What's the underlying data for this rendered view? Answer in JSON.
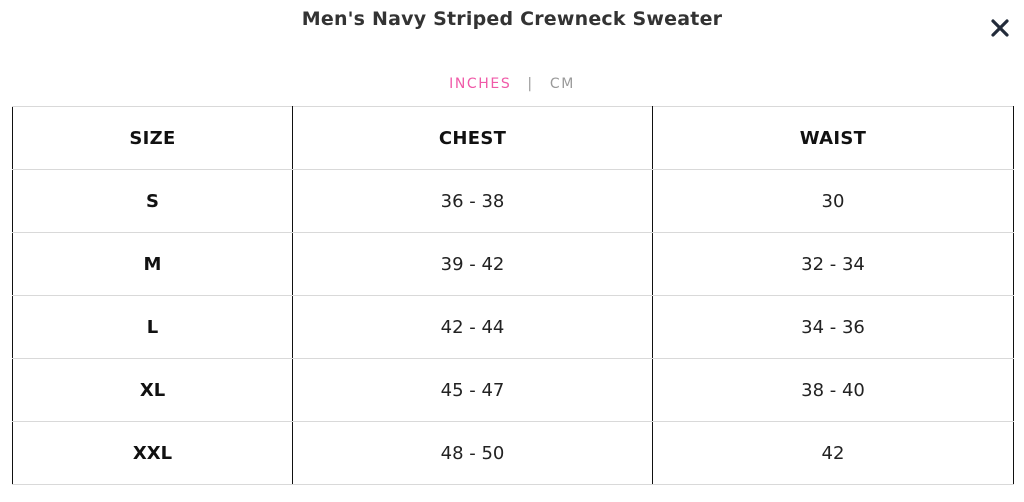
{
  "modal": {
    "title": "Men's Navy Striped Crewneck Sweater",
    "close_icon": "close-icon"
  },
  "units": {
    "options": [
      "INCHES",
      "CM"
    ],
    "selected": "INCHES",
    "active_color": "#f05aa8",
    "inactive_color": "#9a9a9a"
  },
  "table": {
    "headers": [
      "SIZE",
      "CHEST",
      "WAIST"
    ],
    "rows": [
      [
        "S",
        "36 - 38",
        "30"
      ],
      [
        "M",
        "39 - 42",
        "32 - 34"
      ],
      [
        "L",
        "42 - 44",
        "34 - 36"
      ],
      [
        "XL",
        "45 - 47",
        "38 - 40"
      ],
      [
        "XXL",
        "48 - 50",
        "42"
      ]
    ]
  }
}
